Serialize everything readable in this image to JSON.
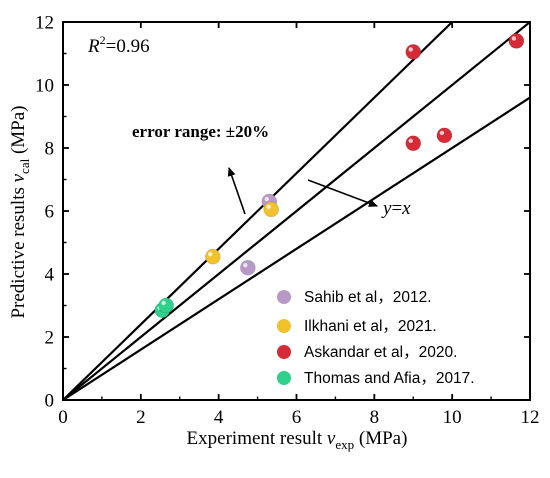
{
  "chart_data": {
    "type": "scatter",
    "title": "",
    "xlabel": {
      "main": "Experiment result ",
      "var": "v",
      "sub": "exp",
      "unit": " (MPa)"
    },
    "ylabel": {
      "main": "Predictive results ",
      "var": "v",
      "sub": "cal",
      "unit": " (MPa)"
    },
    "xlim": [
      0,
      12
    ],
    "ylim": [
      0,
      12
    ],
    "xticks": [
      0,
      2,
      4,
      6,
      8,
      10,
      12
    ],
    "yticks": [
      0,
      2,
      4,
      6,
      8,
      10,
      12
    ],
    "grid": false,
    "legend_position": "bottom-right",
    "reference_lines": [
      {
        "name": "y=x",
        "slope": 1.0
      },
      {
        "name": "+20%",
        "slope": 1.2
      },
      {
        "name": "-20%",
        "slope": 0.8
      }
    ],
    "annotations": {
      "r2_label": "R",
      "r2_sup": "2",
      "r2_value": "=0.96",
      "error_range": "error range: ±20%",
      "yx_y": "y",
      "yx_eq": "=",
      "yx_x": "x"
    },
    "series": [
      {
        "name": "Sahib et al，2012.",
        "color": "#b898c4",
        "points": [
          [
            4.75,
            4.2
          ],
          [
            5.3,
            6.3
          ]
        ]
      },
      {
        "name": "Ilkhani et al，2021.",
        "color": "#f2c12e",
        "points": [
          [
            3.85,
            4.55
          ],
          [
            5.35,
            6.05
          ]
        ]
      },
      {
        "name": "Askandar et al，2020.",
        "color": "#d62a36",
        "points": [
          [
            9.0,
            11.05
          ],
          [
            9.0,
            8.15
          ],
          [
            9.8,
            8.4
          ],
          [
            11.65,
            11.4
          ]
        ]
      },
      {
        "name": "Thomas and Afia，2017.",
        "color": "#2fd08a",
        "points": [
          [
            2.55,
            2.85
          ],
          [
            2.65,
            3.0
          ]
        ]
      }
    ]
  }
}
